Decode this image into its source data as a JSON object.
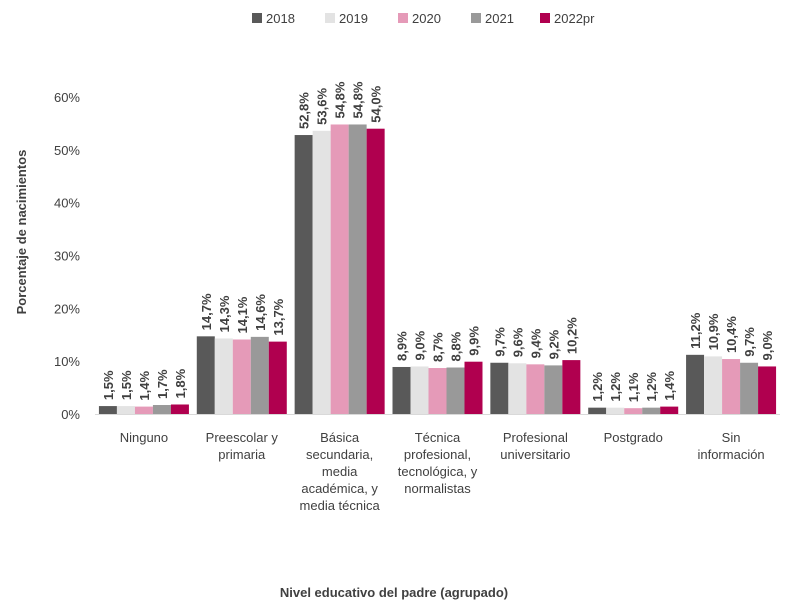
{
  "chart_data": {
    "type": "bar",
    "title": "",
    "xlabel": "Nivel educativo del padre (agrupado)",
    "ylabel": "Porcentaje de nacimientos",
    "ylim": [
      0,
      60
    ],
    "yticks": [
      "0%",
      "10%",
      "20%",
      "30%",
      "40%",
      "50%",
      "60%"
    ],
    "grid": false,
    "legend_position": "top",
    "categories": [
      [
        "Ninguno"
      ],
      [
        "Preescolar y",
        "primaria"
      ],
      [
        "Básica",
        "secundaria,",
        "media",
        "académica, y",
        "media técnica"
      ],
      [
        "Técnica",
        "profesional,",
        "tecnológica, y",
        "normalistas"
      ],
      [
        "Profesional",
        "universitario"
      ],
      [
        "Postgrado"
      ],
      [
        "Sin",
        "información"
      ]
    ],
    "series": [
      {
        "name": "2018",
        "color": "#595959",
        "values": [
          1.5,
          14.7,
          52.8,
          8.9,
          9.7,
          1.2,
          11.2
        ],
        "labels": [
          "1,5%",
          "14,7%",
          "52,8%",
          "8,9%",
          "9,7%",
          "1,2%",
          "11,2%"
        ]
      },
      {
        "name": "2019",
        "color": "#e3e3e3",
        "values": [
          1.5,
          14.3,
          53.6,
          9.0,
          9.6,
          1.2,
          10.9
        ],
        "labels": [
          "1,5%",
          "14,3%",
          "53,6%",
          "9,0%",
          "9,6%",
          "1,2%",
          "10,9%"
        ]
      },
      {
        "name": "2020",
        "color": "#e59ab8",
        "values": [
          1.4,
          14.1,
          54.8,
          8.7,
          9.4,
          1.1,
          10.4
        ],
        "labels": [
          "1,4%",
          "14,1%",
          "54,8%",
          "8,7%",
          "9,4%",
          "1,1%",
          "10,4%"
        ]
      },
      {
        "name": "2021",
        "color": "#999999",
        "values": [
          1.7,
          14.6,
          54.8,
          8.8,
          9.2,
          1.2,
          9.7
        ],
        "labels": [
          "1,7%",
          "14,6%",
          "54,8%",
          "8,8%",
          "9,2%",
          "1,2%",
          "9,7%"
        ]
      },
      {
        "name": "2022pr",
        "color": "#b0004f",
        "values": [
          1.8,
          13.7,
          54.0,
          9.9,
          10.2,
          1.4,
          9.0
        ],
        "labels": [
          "1,8%",
          "13,7%",
          "54,0%",
          "9,9%",
          "10,2%",
          "1,4%",
          "9,0%"
        ]
      }
    ]
  }
}
